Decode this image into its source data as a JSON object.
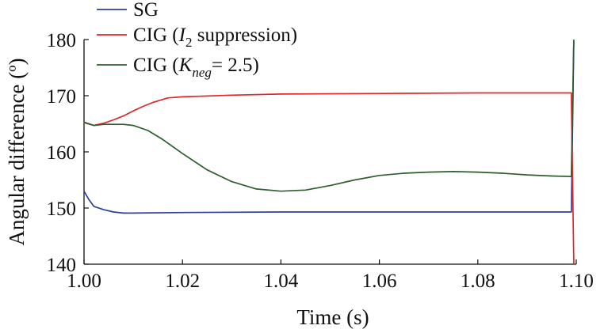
{
  "chart_data": {
    "type": "line",
    "xlabel": "Time (s)",
    "ylabel": "Angular difference (º)",
    "xlim": [
      1.0,
      1.1
    ],
    "ylim": [
      140,
      180
    ],
    "xticks": [
      "1.00",
      "1.02",
      "1.04",
      "1.06",
      "1.08",
      "1.10"
    ],
    "xtick_values": [
      1.0,
      1.02,
      1.04,
      1.06,
      1.08,
      1.1
    ],
    "yticks": [
      "140",
      "150",
      "160",
      "170",
      "180"
    ],
    "ytick_values": [
      140,
      150,
      160,
      170,
      180
    ],
    "grid": false,
    "legend_position": "top-left",
    "series": [
      {
        "name": "SG",
        "color": "#2b3f9e",
        "x": [
          1.0,
          1.001,
          1.002,
          1.004,
          1.006,
          1.008,
          1.01,
          1.02,
          1.04,
          1.06,
          1.08,
          1.099,
          1.0995
        ],
        "y": [
          153.0,
          151.5,
          150.3,
          149.7,
          149.3,
          149.1,
          149.1,
          149.2,
          149.3,
          149.3,
          149.3,
          149.3,
          179.5
        ]
      },
      {
        "name": "CIG (",
        "name_italic": "I",
        "name_sub": "2",
        "name_rest": " suppression)",
        "color": "#e0272b",
        "x": [
          1.0,
          1.002,
          1.004,
          1.006,
          1.008,
          1.01,
          1.012,
          1.014,
          1.017,
          1.02,
          1.03,
          1.04,
          1.06,
          1.08,
          1.099,
          1.0995
        ],
        "y": [
          165.2,
          164.7,
          165.1,
          165.7,
          166.4,
          167.3,
          168.1,
          168.8,
          169.6,
          169.8,
          170.1,
          170.3,
          170.4,
          170.5,
          170.5,
          140.0
        ]
      },
      {
        "name": "CIG (",
        "name_italic": "K",
        "name_sub": "neg",
        "name_rest": "= 2.5)",
        "color": "#2e5e2e",
        "x": [
          1.0,
          1.002,
          1.004,
          1.008,
          1.01,
          1.013,
          1.016,
          1.02,
          1.025,
          1.03,
          1.035,
          1.04,
          1.045,
          1.05,
          1.055,
          1.06,
          1.065,
          1.07,
          1.075,
          1.08,
          1.085,
          1.09,
          1.095,
          1.099,
          1.0995
        ],
        "y": [
          165.3,
          164.7,
          164.9,
          164.9,
          164.7,
          163.8,
          162.2,
          159.7,
          156.8,
          154.7,
          153.4,
          153.0,
          153.2,
          154.0,
          155.0,
          155.8,
          156.2,
          156.4,
          156.5,
          156.4,
          156.2,
          155.9,
          155.7,
          155.6,
          180.0
        ]
      }
    ]
  }
}
